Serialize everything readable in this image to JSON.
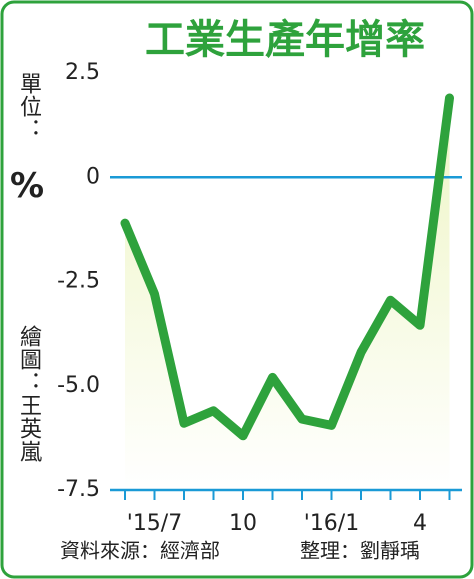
{
  "chart_data": {
    "type": "line",
    "title": "工業生產年增率",
    "unit_label": "單位：",
    "unit": "%",
    "credit_drawing": "繪圖：王英嵐",
    "source": "資料來源：經濟部",
    "credit_editor": "整理：劉靜瑀",
    "categories": [
      null,
      "'15/7",
      null,
      null,
      "10",
      null,
      null,
      "'16/1",
      null,
      null,
      "4",
      null
    ],
    "series": [
      {
        "name": "工業生產年增率",
        "color": "#2ea23c",
        "values": [
          -1.1,
          -2.8,
          -5.9,
          -5.6,
          -6.2,
          -4.8,
          -5.8,
          -5.95,
          -4.2,
          -2.95,
          -3.55,
          1.9
        ]
      }
    ],
    "ylim": [
      -7.5,
      2.5
    ],
    "yticks": [
      2.5,
      0,
      -2.5,
      {
        "value": -5,
        "label": "-5.0"
      },
      -7.5
    ],
    "zero_line_color": "#1a9ad6",
    "area_fill": true
  }
}
